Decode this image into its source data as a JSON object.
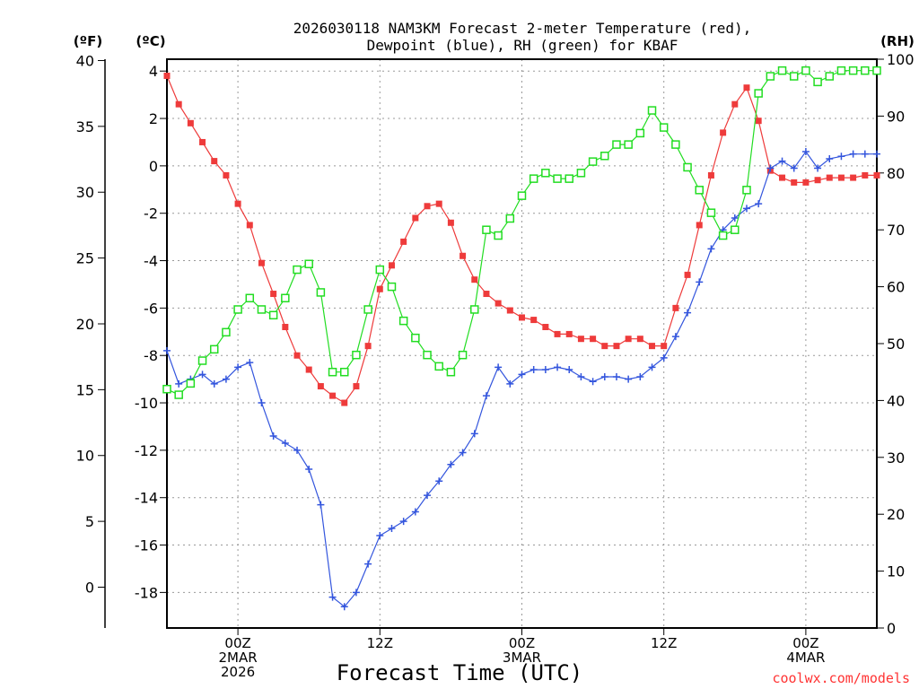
{
  "chart_data": {
    "type": "line",
    "title_line1": "2026030118 NAM3KM Forecast 2-meter Temperature (red),",
    "title_line2": "Dewpoint (blue), RH (green) for KBAF",
    "xlabel": "Forecast Time (UTC)",
    "watermark": "coolwx.com/models",
    "axis_units": {
      "fahrenheit": "(ºF)",
      "celsius": "(ºC)",
      "rh": "(RH)"
    },
    "celsius_range": [
      -19.5,
      4.5
    ],
    "rh_range": [
      0,
      100
    ],
    "fahrenheit_ticks": [
      "40",
      "35",
      "30",
      "25",
      "20",
      "15",
      "10",
      "5",
      "0"
    ],
    "celsius_ticks": [
      "4",
      "2",
      "0",
      "-2",
      "-4",
      "-6",
      "-8",
      "-10",
      "-12",
      "-14",
      "-16",
      "-18"
    ],
    "rh_ticks": [
      "100",
      "90",
      "80",
      "70",
      "60",
      "50",
      "40",
      "30",
      "20",
      "10",
      "0"
    ],
    "x_range_hours": [
      0,
      60
    ],
    "x_ticks": [
      {
        "hour": 6,
        "lines": [
          "00Z",
          "2MAR",
          "2026"
        ]
      },
      {
        "hour": 18,
        "lines": [
          "12Z"
        ]
      },
      {
        "hour": 30,
        "lines": [
          "00Z",
          "3MAR"
        ]
      },
      {
        "hour": 42,
        "lines": [
          "12Z"
        ]
      },
      {
        "hour": 54,
        "lines": [
          "00Z",
          "4MAR"
        ]
      }
    ],
    "x_hours": [
      0,
      1,
      2,
      3,
      4,
      5,
      6,
      7,
      8,
      9,
      10,
      11,
      12,
      13,
      14,
      15,
      16,
      17,
      18,
      19,
      20,
      21,
      22,
      23,
      24,
      25,
      26,
      27,
      28,
      29,
      30,
      31,
      32,
      33,
      34,
      35,
      36,
      37,
      38,
      39,
      40,
      41,
      42,
      43,
      44,
      45,
      46,
      47,
      48,
      49,
      50,
      51,
      52,
      53,
      54,
      55,
      56,
      57,
      58,
      59,
      60
    ],
    "series": [
      {
        "name": "Temperature (°C)",
        "color": "#ee3b3b",
        "axis": "celsius",
        "marker": "filled-square",
        "values": [
          3.8,
          2.6,
          1.8,
          1.0,
          0.2,
          -0.4,
          -1.6,
          -2.5,
          -4.1,
          -5.4,
          -6.8,
          -8.0,
          -8.6,
          -9.3,
          -9.7,
          -10.0,
          -9.3,
          -7.6,
          -5.2,
          -4.2,
          -3.2,
          -2.2,
          -1.7,
          -1.6,
          -2.4,
          -3.8,
          -4.8,
          -5.4,
          -5.8,
          -6.1,
          -6.4,
          -6.5,
          -6.8,
          -7.1,
          -7.1,
          -7.3,
          -7.3,
          -7.6,
          -7.6,
          -7.3,
          -7.3,
          -7.6,
          -7.6,
          -6.0,
          -4.6,
          -2.5,
          -0.4,
          1.4,
          2.6,
          3.3,
          1.9,
          -0.2,
          -0.5,
          -0.7,
          -0.7,
          -0.6,
          -0.5,
          -0.5,
          -0.5,
          -0.4,
          -0.4
        ]
      },
      {
        "name": "Dewpoint (°C)",
        "color": "#3355dd",
        "axis": "celsius",
        "marker": "plus",
        "values": [
          -7.8,
          -9.2,
          -9.0,
          -8.8,
          -9.2,
          -9.0,
          -8.5,
          -8.3,
          -10.0,
          -11.4,
          -11.7,
          -12.0,
          -12.8,
          -14.3,
          -18.2,
          -18.6,
          -18.0,
          -16.8,
          -15.6,
          -15.3,
          -15.0,
          -14.6,
          -13.9,
          -13.3,
          -12.6,
          -12.1,
          -11.3,
          -9.7,
          -8.5,
          -9.2,
          -8.8,
          -8.6,
          -8.6,
          -8.5,
          -8.6,
          -8.9,
          -9.1,
          -8.9,
          -8.9,
          -9.0,
          -8.9,
          -8.5,
          -8.1,
          -7.2,
          -6.2,
          -4.9,
          -3.5,
          -2.7,
          -2.2,
          -1.8,
          -1.6,
          -0.1,
          0.2,
          -0.1,
          0.6,
          -0.1,
          0.3,
          0.4,
          0.5,
          0.5,
          0.5
        ]
      },
      {
        "name": "RH (%)",
        "color": "#22dd22",
        "axis": "rh",
        "marker": "open-square",
        "values": [
          42,
          41,
          43,
          47,
          49,
          52,
          56,
          58,
          56,
          55,
          58,
          63,
          64,
          59,
          45,
          45,
          48,
          56,
          63,
          60,
          54,
          51,
          48,
          46,
          45,
          48,
          56,
          70,
          69,
          72,
          76,
          79,
          80,
          79,
          79,
          80,
          82,
          83,
          85,
          85,
          87,
          91,
          88,
          85,
          81,
          77,
          73,
          69,
          70,
          77,
          94,
          97,
          98,
          97,
          98,
          96,
          97,
          98,
          98,
          98,
          98
        ]
      }
    ]
  }
}
